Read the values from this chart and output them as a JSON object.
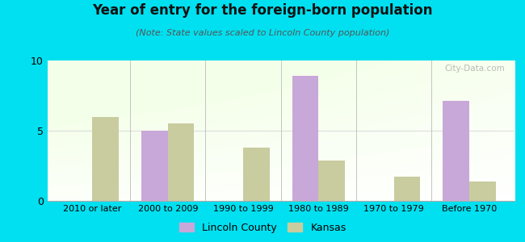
{
  "title": "Year of entry for the foreign-born population",
  "subtitle": "(Note: State values scaled to Lincoln County population)",
  "categories": [
    "2010 or later",
    "2000 to 2009",
    "1990 to 1999",
    "1980 to 1989",
    "1970 to 1979",
    "Before 1970"
  ],
  "lincoln_county": [
    0,
    5.0,
    0,
    8.9,
    0,
    7.1
  ],
  "kansas": [
    6.0,
    5.5,
    3.8,
    2.9,
    1.7,
    1.4
  ],
  "lincoln_color": "#c8a8d8",
  "kansas_color": "#c8cc9f",
  "background_outer": "#00e0f0",
  "ylim": [
    0,
    10
  ],
  "yticks": [
    0,
    5,
    10
  ],
  "bar_width": 0.35,
  "legend_lincoln": "Lincoln County",
  "legend_kansas": "Kansas"
}
